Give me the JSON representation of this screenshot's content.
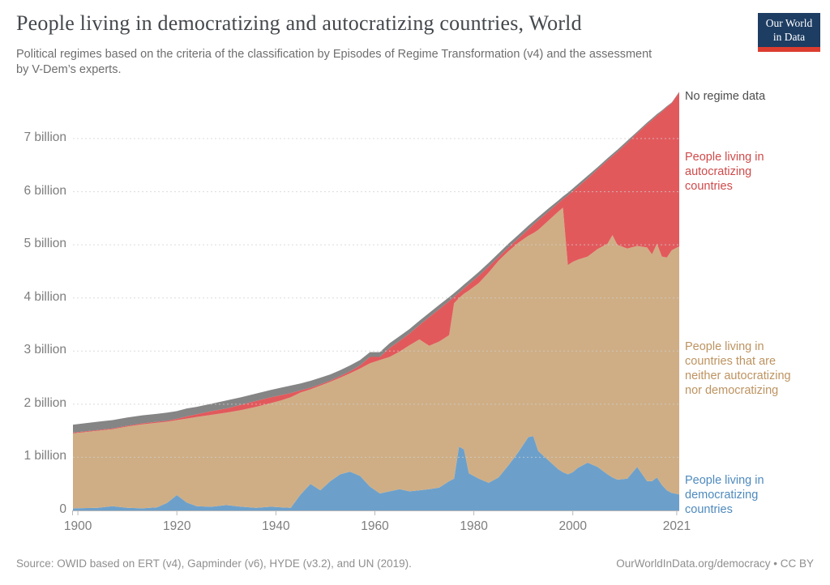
{
  "header": {
    "title": "People living in democratizing and autocratizing countries, World",
    "subtitle": "Political regimes based on the criteria of the classification by Episodes of Regime Transformation (v4) and the assessment by V-Dem’s experts.",
    "logo": {
      "line1": "Our World",
      "line2": "in Data",
      "navy": "#1d3d63",
      "red": "#dc3c2f"
    }
  },
  "footer": {
    "source": "Source: OWID based on ERT (v4), Gapminder (v6), HYDE (v3.2), and UN (2019).",
    "link": "OurWorldInData.org/democracy • CC BY"
  },
  "chart_data": {
    "type": "area",
    "stacked": true,
    "grid": "dashed-horizontal",
    "xlim": [
      1899,
      2021.5
    ],
    "ylim": [
      0,
      7
    ],
    "x": [
      1899,
      1904,
      1907,
      1910,
      1913,
      1916,
      1918,
      1920,
      1922,
      1924,
      1927,
      1930,
      1933,
      1936,
      1939,
      1941,
      1943,
      1945,
      1947,
      1949,
      1951,
      1953,
      1955,
      1957,
      1959,
      1961,
      1963,
      1965,
      1967,
      1969,
      1971,
      1973,
      1975,
      1976,
      1977,
      1978,
      1979,
      1981,
      1983,
      1985,
      1987,
      1989,
      1991,
      1992,
      1993,
      1995,
      1997,
      1998,
      1999,
      2000,
      2001,
      2003,
      2005,
      2007,
      2008,
      2009,
      2011,
      2013,
      2015,
      2016,
      2017,
      2018,
      2019,
      2020,
      2021.5
    ],
    "series": [
      {
        "id": "democratizing",
        "name": "People living in democratizing countries",
        "color": "#6CA0CB",
        "label_color": "#4E8ABD",
        "values": [
          0.04,
          0.05,
          0.08,
          0.05,
          0.04,
          0.06,
          0.14,
          0.29,
          0.15,
          0.08,
          0.07,
          0.1,
          0.07,
          0.05,
          0.07,
          0.06,
          0.05,
          0.3,
          0.5,
          0.38,
          0.55,
          0.68,
          0.73,
          0.65,
          0.45,
          0.32,
          0.36,
          0.4,
          0.36,
          0.38,
          0.4,
          0.43,
          0.55,
          0.6,
          1.2,
          1.15,
          0.7,
          0.6,
          0.52,
          0.62,
          0.85,
          1.1,
          1.38,
          1.4,
          1.12,
          0.95,
          0.78,
          0.72,
          0.68,
          0.72,
          0.8,
          0.9,
          0.82,
          0.68,
          0.62,
          0.58,
          0.6,
          0.82,
          0.55,
          0.55,
          0.62,
          0.48,
          0.38,
          0.33,
          0.3
        ]
      },
      {
        "id": "neither",
        "name": "People living in countries that are neither autocratizing nor democratizing",
        "color": "#CFAE85",
        "label_color": "#BD9360",
        "values": [
          1.41,
          1.45,
          1.45,
          1.53,
          1.58,
          1.59,
          1.53,
          1.41,
          1.58,
          1.68,
          1.73,
          1.74,
          1.82,
          1.9,
          1.95,
          2.01,
          2.08,
          1.92,
          1.78,
          1.97,
          1.87,
          1.82,
          1.85,
          2.02,
          2.32,
          2.51,
          2.53,
          2.59,
          2.75,
          2.84,
          2.7,
          2.75,
          2.75,
          3.3,
          2.8,
          2.93,
          3.44,
          3.68,
          3.96,
          4.08,
          4.03,
          3.94,
          3.79,
          3.82,
          4.16,
          4.5,
          4.84,
          4.98,
          3.94,
          3.96,
          3.92,
          3.88,
          4.1,
          4.34,
          4.56,
          4.42,
          4.33,
          4.16,
          4.4,
          4.27,
          4.4,
          4.3,
          4.38,
          4.57,
          4.67
        ]
      },
      {
        "id": "autocratizing",
        "name": "People living in autocratizing countries",
        "color": "#E2595C",
        "label_color": "#CF4A4A",
        "values": [
          0.015,
          0.015,
          0.015,
          0.015,
          0.02,
          0.02,
          0.02,
          0.025,
          0.04,
          0.05,
          0.07,
          0.08,
          0.1,
          0.11,
          0.11,
          0.1,
          0.08,
          0.04,
          0.03,
          0.025,
          0.025,
          0.03,
          0.04,
          0.06,
          0.12,
          0.06,
          0.17,
          0.2,
          0.22,
          0.27,
          0.54,
          0.61,
          0.64,
          0.12,
          0.1,
          0.1,
          0.12,
          0.14,
          0.11,
          0.07,
          0.07,
          0.08,
          0.12,
          0.16,
          0.18,
          0.17,
          0.16,
          0.16,
          1.31,
          1.33,
          1.37,
          1.47,
          1.5,
          1.57,
          1.49,
          1.75,
          1.99,
          2.12,
          2.32,
          2.53,
          2.41,
          2.73,
          2.83,
          2.77,
          2.9
        ]
      },
      {
        "id": "no-regime-data",
        "name": "No regime data",
        "color": "#858585",
        "label_color": "#4D4D4D",
        "values": [
          0.15,
          0.155,
          0.155,
          0.155,
          0.15,
          0.15,
          0.15,
          0.145,
          0.15,
          0.14,
          0.14,
          0.15,
          0.14,
          0.14,
          0.14,
          0.14,
          0.14,
          0.13,
          0.13,
          0.125,
          0.115,
          0.11,
          0.11,
          0.1,
          0.09,
          0.09,
          0.09,
          0.09,
          0.085,
          0.08,
          0.08,
          0.08,
          0.075,
          0.07,
          0.07,
          0.07,
          0.07,
          0.07,
          0.07,
          0.07,
          0.07,
          0.07,
          0.07,
          0.06,
          0.06,
          0.06,
          0.05,
          0.05,
          0.05,
          0.05,
          0.05,
          0.05,
          0.04,
          0.04,
          0.04,
          0.04,
          0.04,
          0.03,
          0.03,
          0.03,
          0.03,
          0.02,
          0.02,
          0.01,
          0.01
        ]
      }
    ],
    "x_ticks": [
      {
        "value": 1900,
        "label": "1900"
      },
      {
        "value": 1920,
        "label": "1920"
      },
      {
        "value": 1940,
        "label": "1940"
      },
      {
        "value": 1960,
        "label": "1960"
      },
      {
        "value": 1980,
        "label": "1980"
      },
      {
        "value": 2000,
        "label": "2000"
      },
      {
        "value": 2021,
        "label": "2021"
      }
    ],
    "y_ticks": [
      {
        "value": 0,
        "label": "0"
      },
      {
        "value": 1,
        "label": "1 billion"
      },
      {
        "value": 2,
        "label": "2 billion"
      },
      {
        "value": 3,
        "label": "3 billion"
      },
      {
        "value": 4,
        "label": "4 billion"
      },
      {
        "value": 5,
        "label": "5 billion"
      },
      {
        "value": 6,
        "label": "6 billion"
      },
      {
        "value": 7,
        "label": "7 billion"
      }
    ]
  }
}
